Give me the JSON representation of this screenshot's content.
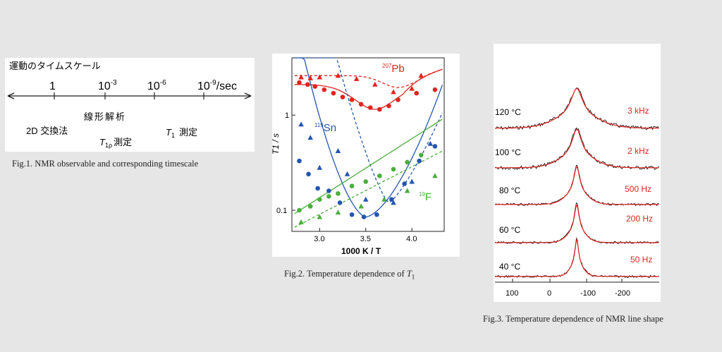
{
  "fig1": {
    "title": "運動のタイムスケール",
    "ticks": [
      {
        "label": "1"
      },
      {
        "label_base": "10",
        "label_exp": "-3"
      },
      {
        "label_base": "10",
        "label_exp": "-6"
      },
      {
        "label_base": "10",
        "label_exp": "-9",
        "label_suffix": "/sec"
      }
    ],
    "methods": {
      "exchange": "2D 交換法",
      "lineshape": "線形解析",
      "t1rho_sym": "T",
      "t1rho_sub": "1ρ",
      "t1rho_text": "測定",
      "t1_sym": "T",
      "t1_sub": "1",
      "t1_text": "測定"
    },
    "caption": "Fig.1. NMR observable and corresponding timescale"
  },
  "fig2": {
    "caption_text": "Fig.2. Temperature dependence of ",
    "caption_sym": "T",
    "caption_sub": "1"
  },
  "fig3": {
    "caption": "Fig.3. Temperature dependence of NMR line shape",
    "temperatures": [
      "120 °C",
      "100 °C",
      "80 °C",
      "60 °C",
      "40 °C"
    ],
    "widths": [
      "3 kHz",
      "2 kHz",
      "500 Hz",
      "200 Hz",
      "50 Hz"
    ],
    "xticks": [
      "100",
      "0",
      "-100",
      "-200"
    ]
  },
  "chart_data": [
    {
      "type": "scatter",
      "xlabel": "1000 K / T",
      "ylabel": "T1 / s",
      "xlim": [
        2.7,
        4.35
      ],
      "ylim": [
        0.06,
        4.0
      ],
      "yscale": "log",
      "grid": false,
      "xticks": [
        "3.0",
        "3.5",
        "4.0"
      ],
      "yticks": [
        "1",
        "0.1"
      ],
      "colors": {
        "Pb": "#e0241f",
        "Sn": "#2456b0",
        "F": "#4aae3c"
      },
      "series": [
        {
          "name": "207Pb",
          "label_iso": "207",
          "label_el": "Pb",
          "color": "#e0241f",
          "marker": "circle",
          "x": [
            2.78,
            2.87,
            2.95,
            3.05,
            3.15,
            3.25,
            3.35,
            3.45,
            3.55,
            3.65,
            3.75,
            3.85,
            4.05,
            4.25
          ],
          "y": [
            2.2,
            2.1,
            2.0,
            1.85,
            1.7,
            1.55,
            1.45,
            1.3,
            1.2,
            1.15,
            1.25,
            1.45,
            1.7,
            1.85
          ]
        },
        {
          "name": "207Pb",
          "color": "#e0241f",
          "marker": "triangle",
          "x": [
            2.8,
            2.9,
            3.0,
            3.2,
            3.4,
            3.6,
            3.8,
            4.0,
            4.1
          ],
          "y": [
            2.5,
            2.45,
            2.5,
            2.6,
            2.4,
            2.1,
            1.75,
            1.9,
            2.6
          ]
        },
        {
          "name": "119Sn",
          "label_iso": "119",
          "label_el": "Sn",
          "color": "#2456b0",
          "marker": "circle",
          "x": [
            2.78,
            2.88,
            2.98,
            3.1,
            3.22,
            3.35,
            3.48,
            3.62,
            3.78,
            3.92,
            4.08,
            4.25
          ],
          "y": [
            0.33,
            0.24,
            0.17,
            0.16,
            0.12,
            0.09,
            0.085,
            0.09,
            0.13,
            0.19,
            0.33,
            0.47
          ]
        },
        {
          "name": "119Sn",
          "color": "#2456b0",
          "marker": "triangle",
          "x": [
            2.8,
            2.9,
            3.0,
            3.2,
            3.3,
            3.5,
            3.8,
            4.0,
            4.2
          ],
          "y": [
            0.8,
            0.58,
            0.28,
            0.42,
            0.24,
            0.13,
            0.12,
            0.2,
            0.5
          ]
        },
        {
          "name": "19F",
          "label_iso": "19",
          "label_el": "F",
          "color": "#4aae3c",
          "marker": "circle",
          "x": [
            2.78,
            2.9,
            3.0,
            3.1,
            3.2,
            3.35,
            3.5,
            3.65,
            3.8,
            3.95,
            4.1
          ],
          "y": [
            0.1,
            0.11,
            0.13,
            0.14,
            0.15,
            0.18,
            0.2,
            0.23,
            0.27,
            0.32,
            0.38
          ]
        },
        {
          "name": "19F",
          "color": "#4aae3c",
          "marker": "triangle",
          "x": [
            2.8,
            3.0,
            3.2,
            3.45,
            3.7,
            3.95,
            4.25
          ],
          "y": [
            0.075,
            0.085,
            0.095,
            0.11,
            0.13,
            0.16,
            0.23
          ]
        }
      ]
    }
  ]
}
